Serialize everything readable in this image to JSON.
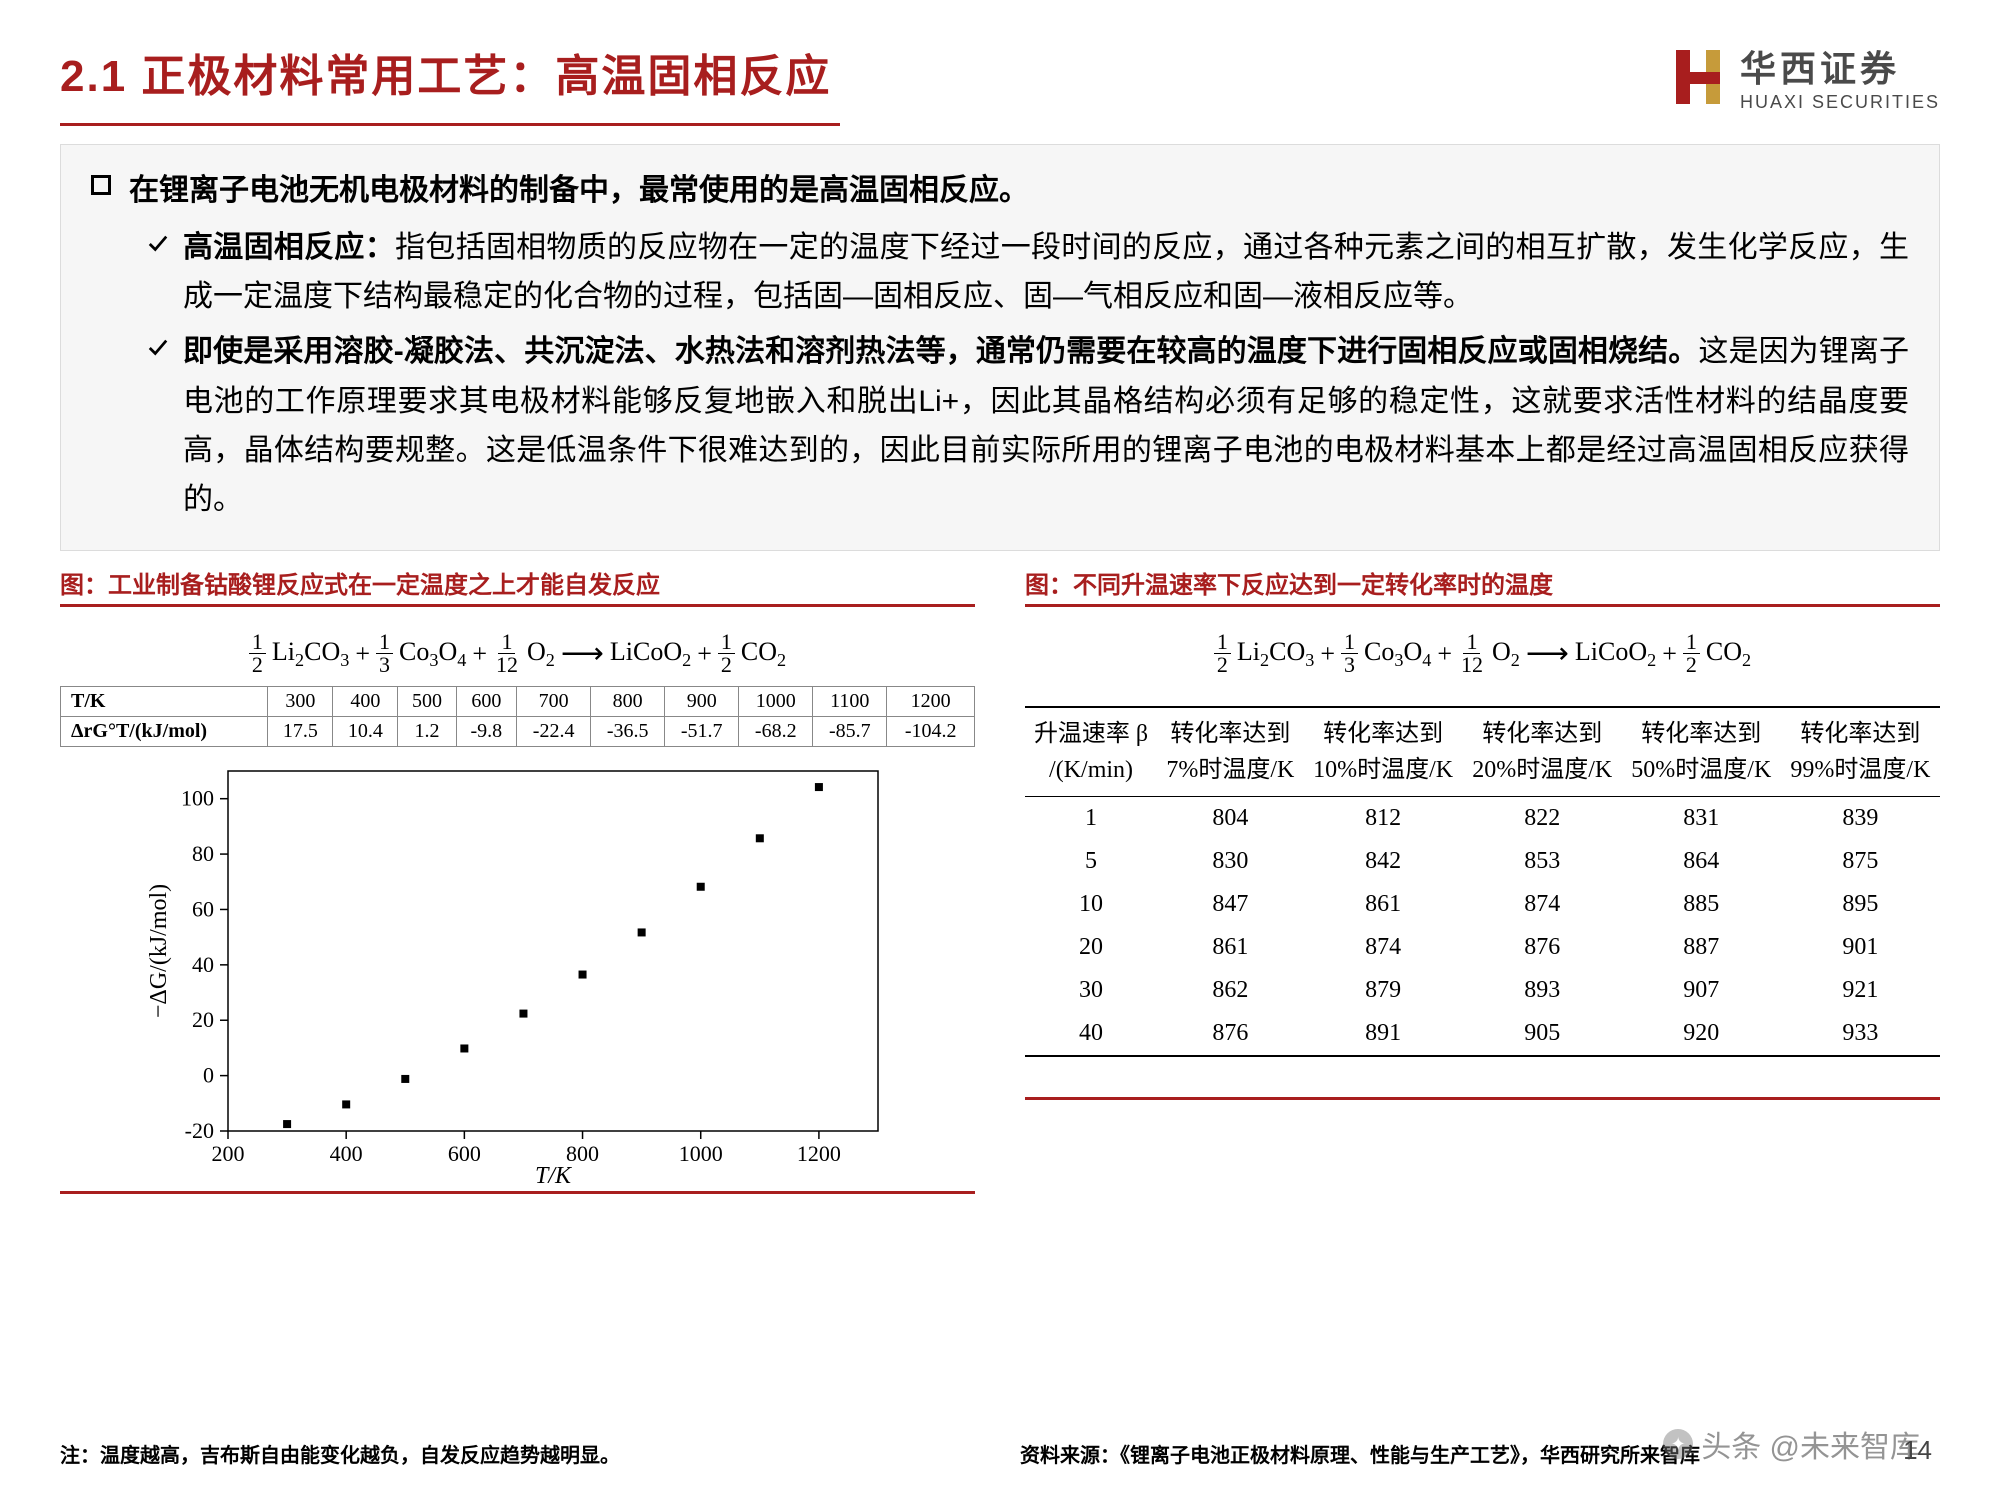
{
  "colors": {
    "accent": "#a81e1e",
    "box_bg": "#f6f6f6",
    "box_border": "#dcdcdc",
    "logo_gray": "#4a4a4a",
    "logo_gold": "#c69b3a"
  },
  "header": {
    "title": "2.1 正极材料常用工艺：高温固相反应",
    "logo_cn": "华西证券",
    "logo_en": "HUAXI SECURITIES"
  },
  "content": {
    "main_bullet": "在锂离子电池无机电极材料的制备中，最常使用的是高温固相反应。",
    "sub1_bold": "高温固相反应：",
    "sub1_rest": "指包括固相物质的反应物在一定的温度下经过一段时间的反应，通过各种元素之间的相互扩散，发生化学反应，生成一定温度下结构最稳定的化合物的过程，包括固—固相反应、固—气相反应和固—液相反应等。",
    "sub2_bold": "即使是采用溶胶-凝胶法、共沉淀法、水热法和溶剂热法等，通常仍需要在较高的温度下进行固相反应或固相烧结。",
    "sub2_rest": "这是因为锂离子电池的工作原理要求其电极材料能够反复地嵌入和脱出Li+，因此其晶格结构必须有足够的稳定性，这就要求活性材料的结晶度要高，晶体结构要规整。这是低温条件下很难达到的，因此目前实际所用的锂离子电池的电极材料基本上都是经过高温固相反应获得的。"
  },
  "fig_left": {
    "title": "图：工业制备钴酸锂反应式在一定温度之上才能自发反应",
    "equation_terms": [
      "1/2",
      "Li₂CO₃",
      "+",
      "1/3",
      "Co₃O₄",
      "+",
      "1/12",
      "O₂",
      "→",
      "LiCoO₂",
      "+",
      "1/2",
      "CO₂"
    ],
    "table": {
      "row1_label": "T/K",
      "row1_values": [
        "300",
        "400",
        "500",
        "600",
        "700",
        "800",
        "900",
        "1000",
        "1100",
        "1200"
      ],
      "row2_label": "ΔrG°T/(kJ/mol)",
      "row2_values": [
        "17.5",
        "10.4",
        "1.2",
        "-9.8",
        "-22.4",
        "-36.5",
        "-51.7",
        "-68.2",
        "-85.7",
        "-104.2"
      ]
    },
    "chart": {
      "type": "scatter",
      "xlabel": "T/K",
      "ylabel": "−ΔG/(kJ/mol)",
      "xlim": [
        200,
        1300
      ],
      "ylim": [
        -20,
        110
      ],
      "xticks": [
        200,
        400,
        600,
        800,
        1000,
        1200
      ],
      "yticks": [
        -20,
        0,
        20,
        40,
        60,
        80,
        100
      ],
      "marker": "square",
      "marker_color": "#000000",
      "marker_size": 8,
      "axis_color": "#000000",
      "background": "#ffffff",
      "points_x": [
        300,
        400,
        500,
        600,
        700,
        800,
        900,
        1000,
        1100,
        1200
      ],
      "points_y": [
        -17.5,
        -10.4,
        -1.2,
        9.8,
        22.4,
        36.5,
        51.7,
        68.2,
        85.7,
        104.2
      ]
    }
  },
  "fig_right": {
    "title": "图：不同升温速率下反应达到一定转化率时的温度",
    "table": {
      "headers": [
        "升温速率 β\n/(K/min)",
        "转化率达到\n7%时温度/K",
        "转化率达到\n10%时温度/K",
        "转化率达到\n20%时温度/K",
        "转化率达到\n50%时温度/K",
        "转化率达到\n99%时温度/K"
      ],
      "rows": [
        [
          "1",
          "804",
          "812",
          "822",
          "831",
          "839"
        ],
        [
          "5",
          "830",
          "842",
          "853",
          "864",
          "875"
        ],
        [
          "10",
          "847",
          "861",
          "874",
          "885",
          "895"
        ],
        [
          "20",
          "861",
          "874",
          "876",
          "887",
          "901"
        ],
        [
          "30",
          "862",
          "879",
          "893",
          "907",
          "921"
        ],
        [
          "40",
          "876",
          "891",
          "905",
          "920",
          "933"
        ]
      ]
    }
  },
  "footer": {
    "note_left": "注：温度越高，吉布斯自由能变化越负，自发反应趋势越明显。",
    "source_right": "资料来源：《锂离子电池正极材料原理、性能与生产工艺》，华西研究所来智库",
    "page": "14",
    "watermark": "头条 @未来智库"
  }
}
